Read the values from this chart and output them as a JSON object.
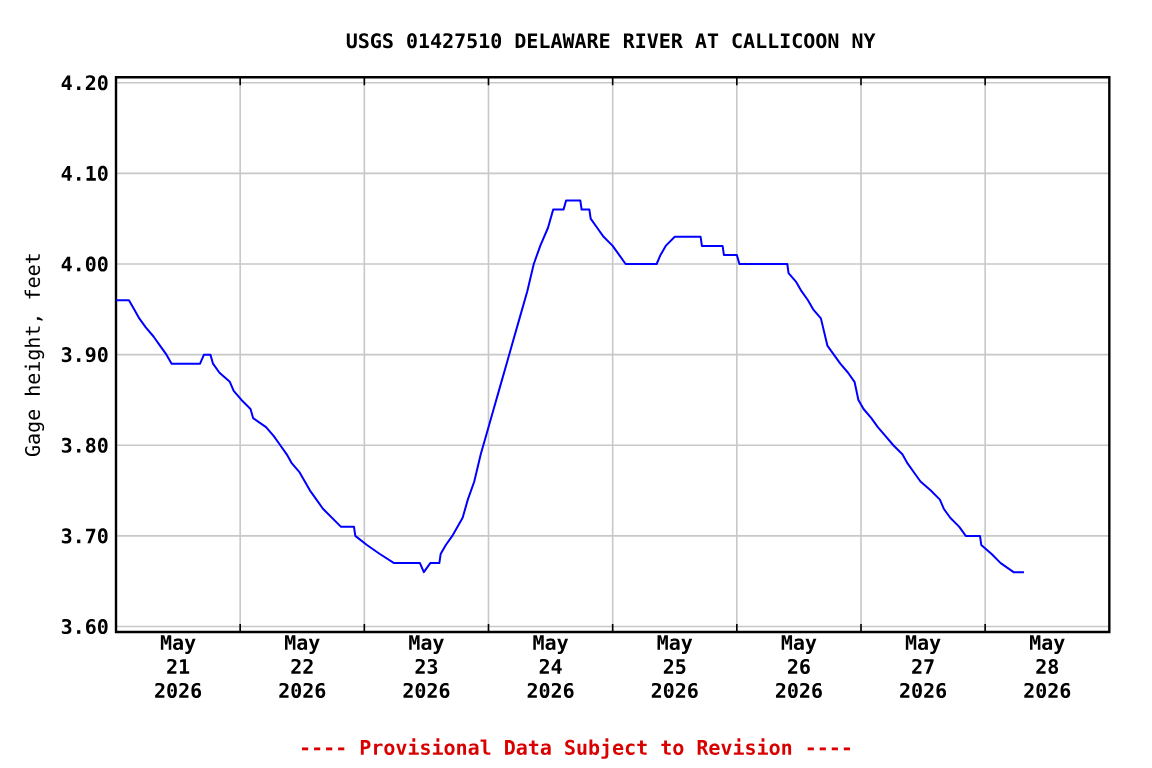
{
  "chart_data": {
    "type": "line",
    "title": "USGS 01427510 DELAWARE RIVER AT CALLICOON NY",
    "ylabel": "Gage height, feet",
    "annotations": [
      "---- Provisional Data Subject to Revision ----"
    ],
    "x": [
      "2026-05-21T00:00",
      "2026-05-21T02:30",
      "2026-05-21T03:30",
      "2026-05-21T04:30",
      "2026-05-21T05:45",
      "2026-05-21T07:15",
      "2026-05-21T08:30",
      "2026-05-21T09:45",
      "2026-05-21T10:45",
      "2026-05-21T15:00",
      "2026-05-21T16:15",
      "2026-05-21T17:00",
      "2026-05-21T18:15",
      "2026-05-21T18:45",
      "2026-05-21T20:00",
      "2026-05-21T22:00",
      "2026-05-21T22:45",
      "2026-05-22T00:15",
      "2026-05-22T02:00",
      "2026-05-22T02:30",
      "2026-05-22T05:00",
      "2026-05-22T06:30",
      "2026-05-22T07:45",
      "2026-05-22T09:00",
      "2026-05-22T10:00",
      "2026-05-22T11:30",
      "2026-05-22T12:30",
      "2026-05-22T13:30",
      "2026-05-22T14:45",
      "2026-05-22T16:00",
      "2026-05-22T17:45",
      "2026-05-22T19:30",
      "2026-05-22T22:00",
      "2026-05-22T22:15",
      "2026-05-23T00:30",
      "2026-05-23T03:00",
      "2026-05-23T05:45",
      "2026-05-23T10:45",
      "2026-05-23T11:30",
      "2026-05-23T12:45",
      "2026-05-23T14:30",
      "2026-05-23T14:45",
      "2026-05-23T15:45",
      "2026-05-23T17:00",
      "2026-05-23T18:00",
      "2026-05-23T19:00",
      "2026-05-23T20:00",
      "2026-05-23T21:15",
      "2026-05-23T22:30",
      "2026-05-23T23:30",
      "2026-05-24T01:00",
      "2026-05-24T02:00",
      "2026-05-24T03:30",
      "2026-05-24T04:30",
      "2026-05-24T06:00",
      "2026-05-24T07:30",
      "2026-05-24T08:45",
      "2026-05-24T10:00",
      "2026-05-24T11:30",
      "2026-05-24T12:30",
      "2026-05-24T14:30",
      "2026-05-24T15:00",
      "2026-05-24T17:45",
      "2026-05-24T18:00",
      "2026-05-24T19:30",
      "2026-05-24T19:45",
      "2026-05-24T21:00",
      "2026-05-24T22:15",
      "2026-05-25T00:00",
      "2026-05-25T01:15",
      "2026-05-25T02:30",
      "2026-05-25T08:30",
      "2026-05-25T09:15",
      "2026-05-25T10:15",
      "2026-05-25T12:00",
      "2026-05-25T17:00",
      "2026-05-25T17:15",
      "2026-05-25T21:15",
      "2026-05-25T21:30",
      "2026-05-26T00:00",
      "2026-05-26T00:30",
      "2026-05-26T09:45",
      "2026-05-26T10:00",
      "2026-05-26T11:30",
      "2026-05-26T12:30",
      "2026-05-26T13:45",
      "2026-05-26T14:45",
      "2026-05-26T16:15",
      "2026-05-26T17:30",
      "2026-05-26T18:45",
      "2026-05-26T20:00",
      "2026-05-26T21:30",
      "2026-05-26T22:45",
      "2026-05-26T23:30",
      "2026-05-27T00:30",
      "2026-05-27T02:00",
      "2026-05-27T03:15",
      "2026-05-27T04:45",
      "2026-05-27T06:15",
      "2026-05-27T08:00",
      "2026-05-27T09:00",
      "2026-05-27T10:15",
      "2026-05-27T11:30",
      "2026-05-27T13:30",
      "2026-05-27T15:15",
      "2026-05-27T16:00",
      "2026-05-27T17:15",
      "2026-05-27T19:00",
      "2026-05-27T20:15",
      "2026-05-27T23:00",
      "2026-05-27T23:15",
      "2026-05-28T01:15",
      "2026-05-28T03:00",
      "2026-05-28T05:30",
      "2026-05-28T07:30"
    ],
    "series": [
      {
        "color": "#0000ff",
        "values": [
          3.96,
          3.96,
          3.95,
          3.94,
          3.93,
          3.92,
          3.91,
          3.9,
          3.89,
          3.89,
          3.89,
          3.9,
          3.9,
          3.89,
          3.88,
          3.87,
          3.86,
          3.85,
          3.84,
          3.83,
          3.82,
          3.81,
          3.8,
          3.79,
          3.78,
          3.77,
          3.76,
          3.75,
          3.74,
          3.73,
          3.72,
          3.71,
          3.71,
          3.7,
          3.69,
          3.68,
          3.67,
          3.67,
          3.66,
          3.67,
          3.67,
          3.68,
          3.69,
          3.7,
          3.71,
          3.72,
          3.74,
          3.76,
          3.79,
          3.81,
          3.84,
          3.86,
          3.89,
          3.91,
          3.94,
          3.97,
          4.0,
          4.02,
          4.04,
          4.06,
          4.06,
          4.07,
          4.07,
          4.06,
          4.06,
          4.05,
          4.04,
          4.03,
          4.02,
          4.01,
          4.0,
          4.0,
          4.01,
          4.02,
          4.03,
          4.03,
          4.02,
          4.02,
          4.01,
          4.01,
          4.0,
          4.0,
          3.99,
          3.98,
          3.97,
          3.96,
          3.95,
          3.94,
          3.91,
          3.9,
          3.89,
          3.88,
          3.87,
          3.85,
          3.84,
          3.83,
          3.82,
          3.81,
          3.8,
          3.79,
          3.78,
          3.77,
          3.76,
          3.75,
          3.74,
          3.73,
          3.72,
          3.71,
          3.7,
          3.7,
          3.69,
          3.68,
          3.67,
          3.66,
          3.66
        ]
      }
    ],
    "xlim": [
      "2026-05-21T00:00",
      "2026-05-29T00:00"
    ],
    "xticks": [
      {
        "value": "2026-05-21T12:00",
        "label": "May 21 2026"
      },
      {
        "value": "2026-05-22T00:00",
        "label": null
      },
      {
        "value": "2026-05-22T12:00",
        "label": "May 22 2026"
      },
      {
        "value": "2026-05-23T00:00",
        "label": null
      },
      {
        "value": "2026-05-23T12:00",
        "label": "May 23 2026"
      },
      {
        "value": "2026-05-24T00:00",
        "label": null
      },
      {
        "value": "2026-05-24T12:00",
        "label": "May 24 2026"
      },
      {
        "value": "2026-05-25T00:00",
        "label": null
      },
      {
        "value": "2026-05-25T12:00",
        "label": "May 25 2026"
      },
      {
        "value": "2026-05-26T00:00",
        "label": null
      },
      {
        "value": "2026-05-26T12:00",
        "label": "May 26 2026"
      },
      {
        "value": "2026-05-27T00:00",
        "label": null
      },
      {
        "value": "2026-05-27T12:00",
        "label": "May 27 2026"
      },
      {
        "value": "2026-05-28T00:00",
        "label": null
      },
      {
        "value": "2026-05-28T12:00",
        "label": "May 28 2026"
      }
    ],
    "ylim": [
      3.594,
      4.206
    ],
    "yticks": [
      {
        "value": 3.6,
        "label": "3.60"
      },
      {
        "value": 3.7,
        "label": "3.70"
      },
      {
        "value": 3.8,
        "label": "3.80"
      },
      {
        "value": 3.9,
        "label": "3.90"
      },
      {
        "value": 4.0,
        "label": "4.00"
      },
      {
        "value": 4.1,
        "label": "4.10"
      },
      {
        "value": 4.2,
        "label": "4.20"
      }
    ],
    "grid": true,
    "marker": "none",
    "line_style": "solid"
  }
}
